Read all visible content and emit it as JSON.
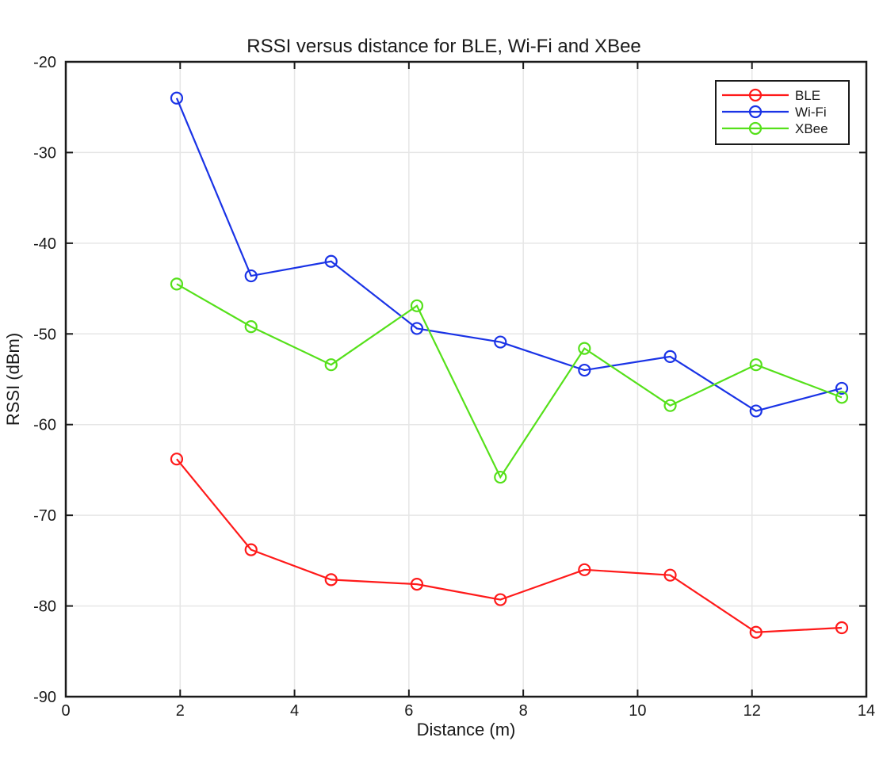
{
  "chart_data": {
    "type": "line",
    "title": "RSSI versus distance for BLE, Wi-Fi and XBee",
    "xlabel": "Distance (m)",
    "ylabel": "RSSI (dBm)",
    "xlim": [
      0,
      14
    ],
    "ylim": [
      -90,
      -20
    ],
    "xticks": [
      "0",
      "2",
      "4",
      "6",
      "8",
      "10",
      "12",
      "14"
    ],
    "yticks": [
      "-20",
      "-30",
      "-40",
      "-50",
      "-60",
      "-70",
      "-80",
      "-90"
    ],
    "grid": true,
    "legend_position": "top-right",
    "x": [
      1.94,
      3.24,
      4.64,
      6.14,
      7.6,
      9.07,
      10.57,
      12.07,
      13.57
    ],
    "series": [
      {
        "name": "BLE",
        "color": "#ff1a1a",
        "marker": "circle",
        "values": [
          -63.8,
          -73.8,
          -77.1,
          -77.6,
          -79.3,
          -76.0,
          -76.6,
          -82.9,
          -82.4
        ]
      },
      {
        "name": "Wi-Fi",
        "color": "#1a33e6",
        "marker": "circle",
        "values": [
          -24.0,
          -43.6,
          -42.0,
          -49.4,
          -50.9,
          -54.0,
          -52.5,
          -58.5,
          -56.0
        ]
      },
      {
        "name": "XBee",
        "color": "#55e01a",
        "marker": "circle",
        "values": [
          -44.5,
          -49.2,
          -53.4,
          -46.9,
          -65.8,
          -51.6,
          -57.9,
          -53.4,
          -57.0
        ]
      }
    ]
  }
}
